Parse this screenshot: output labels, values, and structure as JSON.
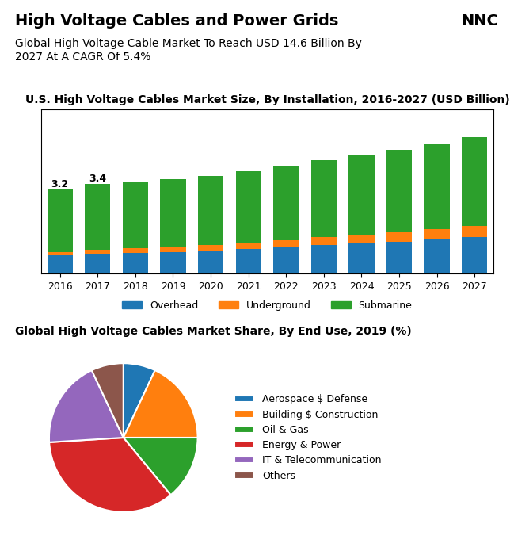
{
  "title": "High Voltage Cables and Power Grids",
  "subtitle": "Global High Voltage Cable Market To Reach USD 14.6 Billion By\n2027 At A CAGR Of 5.4%",
  "annotations": [
    "NNC"
  ],
  "chart_data": [
    {
      "type": "bar",
      "title": "U.S. High Voltage Cables Market Size, By Installation, 2016-2027 (USD Billion)",
      "categories": [
        "2016",
        "2017",
        "2018",
        "2019",
        "2020",
        "2021",
        "2022",
        "2023",
        "2024",
        "2025",
        "2026",
        "2027"
      ],
      "series": [
        {
          "name": "Overhead",
          "values": [
            0.7,
            0.75,
            0.78,
            0.82,
            0.88,
            0.92,
            1.0,
            1.08,
            1.15,
            1.22,
            1.3,
            1.38
          ]
        },
        {
          "name": "Underground",
          "values": [
            0.12,
            0.15,
            0.18,
            0.2,
            0.22,
            0.25,
            0.28,
            0.3,
            0.33,
            0.36,
            0.4,
            0.44
          ]
        },
        {
          "name": "Submarine",
          "values": [
            2.38,
            2.5,
            2.54,
            2.58,
            2.6,
            2.73,
            2.82,
            2.92,
            3.02,
            3.12,
            3.2,
            3.38
          ]
        }
      ],
      "stacked": true,
      "ylim": [
        0,
        6.24
      ],
      "yticks": [],
      "tick_labels": "x",
      "legend": "upper center",
      "annotations": [
        {
          "text": "3.2",
          "category": "2016"
        },
        {
          "text": "3.4",
          "category": "2017"
        }
      ]
    },
    {
      "type": "pie",
      "title": "Global High Voltage Cables Market Share, By End Use, 2019 (%)",
      "categories": [
        "Aerospace $ Defense",
        "Building $ Construction",
        "Oil & Gas",
        "Energy & Power",
        "IT & Telecommunication",
        "Others"
      ],
      "values": [
        7,
        18,
        14,
        35,
        19,
        7
      ],
      "legend": "center left"
    }
  ]
}
